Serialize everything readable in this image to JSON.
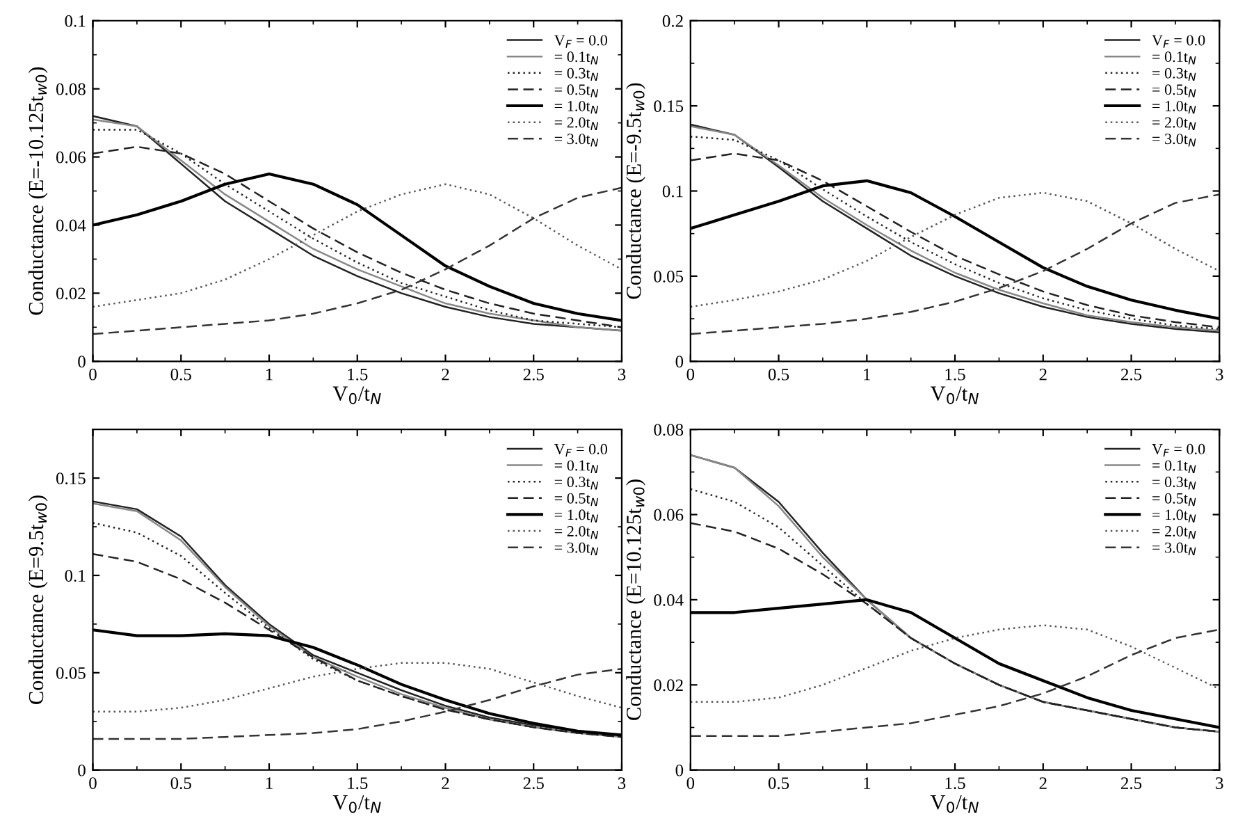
{
  "chart_data": [
    {
      "type": "line",
      "xlabel": "V$_{0}$/t$_{N}$",
      "ylabel": "Conductance (E=-10.125t$_{w0}$)",
      "x": [
        0,
        0.25,
        0.5,
        0.75,
        1,
        1.25,
        1.5,
        1.75,
        2,
        2.25,
        2.5,
        2.75,
        3
      ],
      "xlim": [
        0,
        3
      ],
      "xticks": [
        0,
        0.5,
        1,
        1.5,
        2,
        2.5,
        3
      ],
      "ylim": [
        0,
        0.1
      ],
      "yticks": [
        0,
        0.02,
        0.04,
        0.06,
        0.08,
        0.1
      ],
      "grid": false,
      "legend": "top right",
      "marker": "none",
      "series": [
        {
          "name": "V$_{F}$ = 0.0",
          "color": "#222222",
          "line_style": "solid",
          "values": [
            0.072,
            0.069,
            0.058,
            0.047,
            0.039,
            0.031,
            0.025,
            0.02,
            0.016,
            0.013,
            0.011,
            0.01,
            0.009
          ]
        },
        {
          "name": "= 0.1t$_{N}$",
          "color": "#888888",
          "line_style": "solid",
          "values": [
            0.071,
            0.069,
            0.059,
            0.049,
            0.041,
            0.033,
            0.027,
            0.022,
            0.017,
            0.014,
            0.012,
            0.01,
            0.009
          ]
        },
        {
          "name": "= 0.3t$_{N}$",
          "color": "#222222",
          "line_style": "dotted",
          "values": [
            0.068,
            0.068,
            0.061,
            0.052,
            0.044,
            0.036,
            0.029,
            0.023,
            0.019,
            0.015,
            0.012,
            0.011,
            0.01
          ]
        },
        {
          "name": "= 0.5t$_{N}$",
          "color": "#222222",
          "line_style": "dashed",
          "values": [
            0.061,
            0.063,
            0.061,
            0.055,
            0.047,
            0.039,
            0.032,
            0.026,
            0.021,
            0.017,
            0.014,
            0.012,
            0.01
          ]
        },
        {
          "name": "= 1.0t$_{N}$",
          "color": "#000000",
          "line_style": "solid",
          "values": [
            0.04,
            0.043,
            0.047,
            0.052,
            0.055,
            0.052,
            0.046,
            0.037,
            0.028,
            0.022,
            0.017,
            0.014,
            0.012
          ]
        },
        {
          "name": "= 2.0t$_{N}$",
          "color": "#555555",
          "line_style": "dotted",
          "values": [
            0.016,
            0.018,
            0.02,
            0.024,
            0.03,
            0.037,
            0.044,
            0.049,
            0.052,
            0.049,
            0.042,
            0.034,
            0.027
          ]
        },
        {
          "name": "= 3.0t$_{N}$",
          "color": "#333333",
          "line_style": "dashed",
          "values": [
            0.008,
            0.009,
            0.01,
            0.011,
            0.012,
            0.014,
            0.017,
            0.021,
            0.027,
            0.034,
            0.042,
            0.048,
            0.051
          ]
        }
      ]
    },
    {
      "type": "line",
      "xlabel": "V$_{0}$/t$_{N}$",
      "ylabel": "Conductance (E=-9.5t$_{w0}$)",
      "x": [
        0,
        0.25,
        0.5,
        0.75,
        1,
        1.25,
        1.5,
        1.75,
        2,
        2.25,
        2.5,
        2.75,
        3
      ],
      "xlim": [
        0,
        3
      ],
      "xticks": [
        0,
        0.5,
        1,
        1.5,
        2,
        2.5,
        3
      ],
      "ylim": [
        0,
        0.2
      ],
      "yticks": [
        0,
        0.05,
        0.1,
        0.15,
        0.2
      ],
      "grid": false,
      "legend": "top right",
      "marker": "none",
      "series": [
        {
          "name": "V$_{F}$ = 0.0",
          "color": "#222222",
          "line_style": "solid",
          "values": [
            0.139,
            0.133,
            0.114,
            0.094,
            0.078,
            0.062,
            0.05,
            0.04,
            0.032,
            0.026,
            0.022,
            0.019,
            0.017
          ]
        },
        {
          "name": "= 0.1t$_{N}$",
          "color": "#888888",
          "line_style": "solid",
          "values": [
            0.138,
            0.133,
            0.115,
            0.096,
            0.08,
            0.065,
            0.052,
            0.042,
            0.034,
            0.027,
            0.023,
            0.02,
            0.018
          ]
        },
        {
          "name": "= 0.3t$_{N}$",
          "color": "#222222",
          "line_style": "dotted",
          "values": [
            0.132,
            0.13,
            0.118,
            0.101,
            0.085,
            0.07,
            0.057,
            0.046,
            0.037,
            0.03,
            0.025,
            0.021,
            0.019
          ]
        },
        {
          "name": "= 0.5t$_{N}$",
          "color": "#222222",
          "line_style": "dashed",
          "values": [
            0.118,
            0.122,
            0.118,
            0.106,
            0.091,
            0.076,
            0.062,
            0.051,
            0.041,
            0.033,
            0.027,
            0.023,
            0.02
          ]
        },
        {
          "name": "= 1.0t$_{N}$",
          "color": "#000000",
          "line_style": "solid",
          "values": [
            0.078,
            0.086,
            0.094,
            0.103,
            0.106,
            0.099,
            0.085,
            0.07,
            0.055,
            0.044,
            0.036,
            0.03,
            0.025
          ]
        },
        {
          "name": "= 2.0t$_{N}$",
          "color": "#555555",
          "line_style": "dotted",
          "values": [
            0.032,
            0.036,
            0.041,
            0.048,
            0.059,
            0.073,
            0.086,
            0.096,
            0.099,
            0.094,
            0.081,
            0.066,
            0.053
          ]
        },
        {
          "name": "= 3.0t$_{N}$",
          "color": "#333333",
          "line_style": "dashed",
          "values": [
            0.016,
            0.018,
            0.02,
            0.022,
            0.025,
            0.029,
            0.035,
            0.043,
            0.053,
            0.066,
            0.081,
            0.093,
            0.098
          ]
        }
      ]
    },
    {
      "type": "line",
      "xlabel": "V$_{0}$/t$_{N}$",
      "ylabel": "Conductance (E=9.5t$_{w0}$)",
      "x": [
        0,
        0.25,
        0.5,
        0.75,
        1,
        1.25,
        1.5,
        1.75,
        2,
        2.25,
        2.5,
        2.75,
        3
      ],
      "xlim": [
        0,
        3
      ],
      "xticks": [
        0,
        0.5,
        1,
        1.5,
        2,
        2.5,
        3
      ],
      "ylim": [
        0,
        0.175
      ],
      "yticks": [
        0,
        0.05,
        0.1,
        0.15
      ],
      "grid": false,
      "legend": "top right",
      "marker": "none",
      "series": [
        {
          "name": "V$_{F}$ = 0.0",
          "color": "#222222",
          "line_style": "solid",
          "values": [
            0.138,
            0.134,
            0.12,
            0.095,
            0.075,
            0.059,
            0.05,
            0.041,
            0.033,
            0.027,
            0.023,
            0.02,
            0.018
          ]
        },
        {
          "name": "= 0.1t$_{N}$",
          "color": "#888888",
          "line_style": "solid",
          "values": [
            0.137,
            0.133,
            0.118,
            0.094,
            0.074,
            0.058,
            0.048,
            0.039,
            0.032,
            0.026,
            0.022,
            0.019,
            0.017
          ]
        },
        {
          "name": "= 0.3t$_{N}$",
          "color": "#222222",
          "line_style": "dotted",
          "values": [
            0.127,
            0.122,
            0.11,
            0.091,
            0.073,
            0.057,
            0.046,
            0.038,
            0.031,
            0.026,
            0.022,
            0.019,
            0.017
          ]
        },
        {
          "name": "= 0.5t$_{N}$",
          "color": "#222222",
          "line_style": "dashed",
          "values": [
            0.111,
            0.107,
            0.098,
            0.086,
            0.072,
            0.058,
            0.046,
            0.038,
            0.031,
            0.026,
            0.022,
            0.019,
            0.017
          ]
        },
        {
          "name": "= 1.0t$_{N}$",
          "color": "#000000",
          "line_style": "solid",
          "values": [
            0.072,
            0.069,
            0.069,
            0.07,
            0.069,
            0.063,
            0.054,
            0.044,
            0.036,
            0.029,
            0.024,
            0.02,
            0.018
          ]
        },
        {
          "name": "= 2.0t$_{N}$",
          "color": "#555555",
          "line_style": "dotted",
          "values": [
            0.03,
            0.03,
            0.032,
            0.036,
            0.042,
            0.048,
            0.052,
            0.055,
            0.055,
            0.052,
            0.045,
            0.038,
            0.032
          ]
        },
        {
          "name": "= 3.0t$_{N}$",
          "color": "#333333",
          "line_style": "dashed",
          "values": [
            0.016,
            0.016,
            0.016,
            0.017,
            0.018,
            0.019,
            0.021,
            0.025,
            0.03,
            0.036,
            0.043,
            0.049,
            0.052
          ]
        }
      ]
    },
    {
      "type": "line",
      "xlabel": "V$_{0}$/t$_{N}$",
      "ylabel": "Conductance (E=10.125t$_{w0}$)",
      "x": [
        0,
        0.25,
        0.5,
        0.75,
        1,
        1.25,
        1.5,
        1.75,
        2,
        2.25,
        2.5,
        2.75,
        3
      ],
      "xlim": [
        0,
        3
      ],
      "xticks": [
        0,
        0.5,
        1,
        1.5,
        2,
        2.5,
        3
      ],
      "ylim": [
        0,
        0.08
      ],
      "yticks": [
        0,
        0.02,
        0.04,
        0.06,
        0.08
      ],
      "grid": false,
      "legend": "top right",
      "marker": "none",
      "series": [
        {
          "name": "V$_{F}$ = 0.0",
          "color": "#222222",
          "line_style": "solid",
          "values": [
            0.074,
            0.071,
            0.063,
            0.051,
            0.04,
            0.031,
            0.025,
            0.02,
            0.016,
            0.014,
            0.012,
            0.01,
            0.009
          ]
        },
        {
          "name": "= 0.1t$_{N}$",
          "color": "#888888",
          "line_style": "solid",
          "values": [
            0.074,
            0.071,
            0.062,
            0.05,
            0.04,
            0.031,
            0.025,
            0.02,
            0.016,
            0.014,
            0.012,
            0.01,
            0.009
          ]
        },
        {
          "name": "= 0.3t$_{N}$",
          "color": "#222222",
          "line_style": "dotted",
          "values": [
            0.066,
            0.063,
            0.057,
            0.048,
            0.039,
            0.031,
            0.025,
            0.02,
            0.016,
            0.014,
            0.012,
            0.01,
            0.009
          ]
        },
        {
          "name": "= 0.5t$_{N}$",
          "color": "#222222",
          "line_style": "dashed",
          "values": [
            0.058,
            0.056,
            0.052,
            0.046,
            0.039,
            0.031,
            0.025,
            0.02,
            0.016,
            0.014,
            0.012,
            0.01,
            0.009
          ]
        },
        {
          "name": "= 1.0t$_{N}$",
          "color": "#000000",
          "line_style": "solid",
          "values": [
            0.037,
            0.037,
            0.038,
            0.039,
            0.04,
            0.037,
            0.031,
            0.025,
            0.021,
            0.017,
            0.014,
            0.012,
            0.01
          ]
        },
        {
          "name": "= 2.0t$_{N}$",
          "color": "#555555",
          "line_style": "dotted",
          "values": [
            0.016,
            0.016,
            0.017,
            0.02,
            0.024,
            0.028,
            0.031,
            0.033,
            0.034,
            0.033,
            0.029,
            0.024,
            0.019
          ]
        },
        {
          "name": "= 3.0t$_{N}$",
          "color": "#333333",
          "line_style": "dashed",
          "values": [
            0.008,
            0.008,
            0.008,
            0.009,
            0.01,
            0.011,
            0.013,
            0.015,
            0.018,
            0.022,
            0.027,
            0.031,
            0.033
          ]
        }
      ]
    }
  ]
}
